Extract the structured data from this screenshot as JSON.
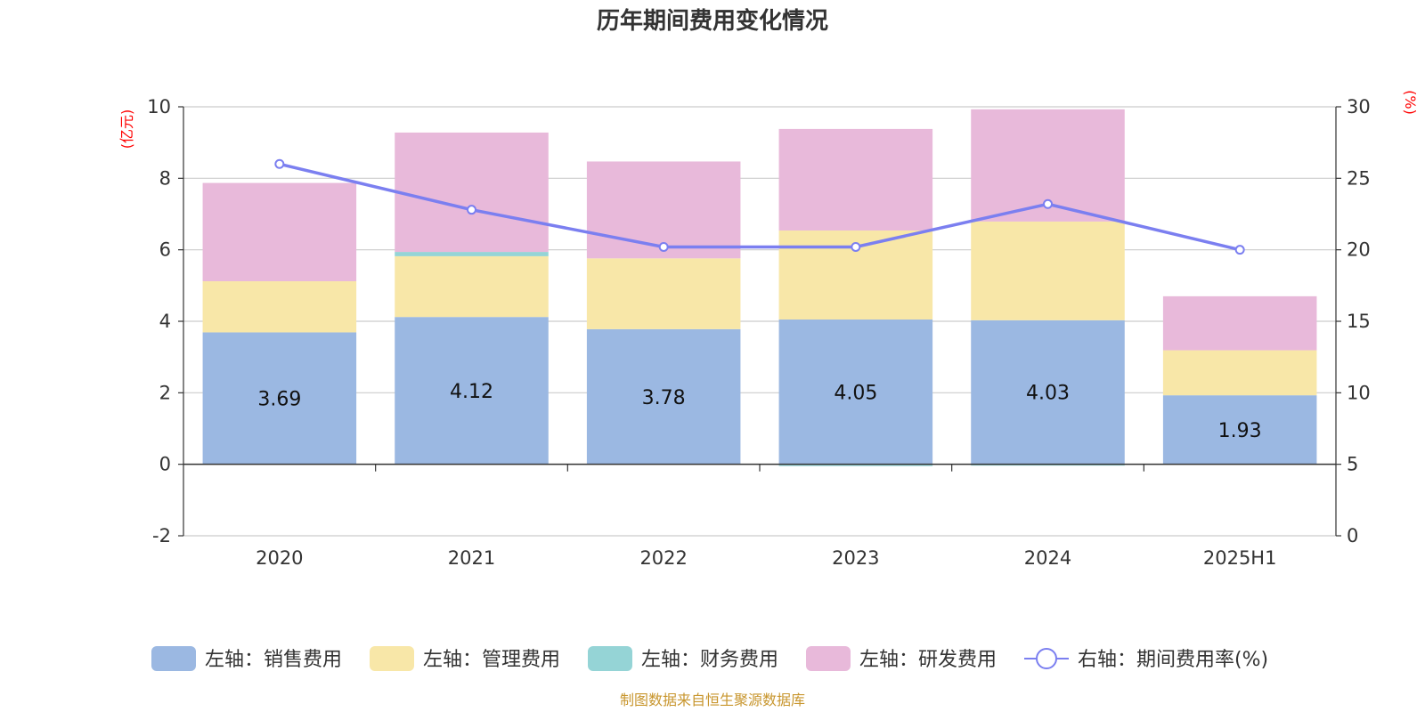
{
  "chart_data": {
    "type": "bar",
    "title": "历年期间费用变化情况",
    "categories": [
      "2020",
      "2021",
      "2022",
      "2023",
      "2024",
      "2025H1"
    ],
    "left_axis": {
      "unit": "(亿元)",
      "ticks": [
        "-2",
        "0",
        "2",
        "4",
        "6",
        "8",
        "10"
      ],
      "ylim": [
        -2,
        10
      ]
    },
    "right_axis": {
      "unit": "(%)",
      "ticks": [
        "0",
        "5",
        "10",
        "15",
        "20",
        "25",
        "30"
      ],
      "ylim": [
        0,
        30
      ]
    },
    "series": [
      {
        "name": "左轴：销售费用",
        "type": "bar",
        "stack": "total",
        "axis": "left",
        "color": "#9bb8e2",
        "values": [
          3.69,
          4.12,
          3.78,
          4.05,
          4.03,
          1.93
        ],
        "labels": [
          "3.69",
          "4.12",
          "3.78",
          "4.05",
          "4.03",
          "1.93"
        ]
      },
      {
        "name": "左轴：管理费用",
        "type": "bar",
        "stack": "total",
        "axis": "left",
        "color": "#f8e7a8",
        "values": [
          1.43,
          1.7,
          1.98,
          2.49,
          2.76,
          1.26
        ]
      },
      {
        "name": "左轴：财务费用",
        "type": "bar",
        "stack": "total",
        "axis": "left",
        "color": "#95d4d6",
        "values": [
          0.0,
          0.12,
          0.0,
          -0.05,
          -0.02,
          0.0
        ]
      },
      {
        "name": "左轴：研发费用",
        "type": "bar",
        "stack": "total",
        "axis": "left",
        "color": "#e8b9da",
        "values": [
          2.75,
          3.34,
          2.71,
          2.84,
          3.14,
          1.51
        ]
      },
      {
        "name": "右轴：期间费用率(%)",
        "type": "line",
        "axis": "right",
        "color": "#7b7ff0",
        "values": [
          26.0,
          22.8,
          20.2,
          20.2,
          23.2,
          20.0
        ]
      }
    ],
    "grid": true,
    "legend_position": "bottom"
  },
  "source": "制图数据来自恒生聚源数据库"
}
